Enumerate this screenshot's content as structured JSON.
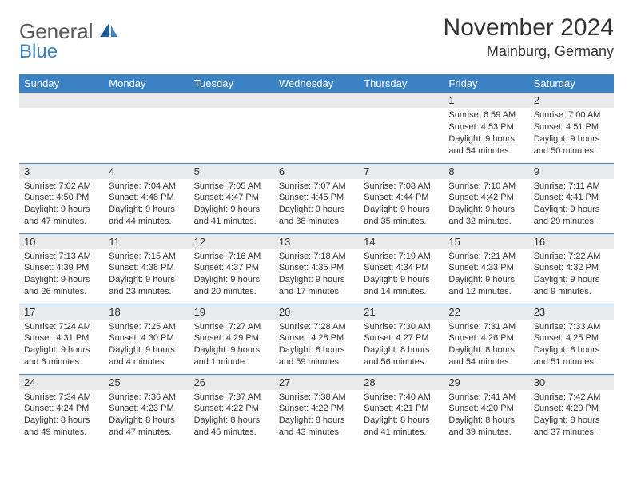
{
  "brand": {
    "main": "General",
    "sub": "Blue"
  },
  "title": {
    "month": "November 2024",
    "location": "Mainburg, Germany"
  },
  "colors": {
    "header_bg": "#3b82c4",
    "header_text": "#ffffff",
    "daynum_bg": "#e8eaec",
    "border": "#3b82c4",
    "text": "#333333",
    "logo_gray": "#5a5a5a",
    "logo_blue": "#3b82c4",
    "page_bg": "#ffffff"
  },
  "weekdays": [
    "Sunday",
    "Monday",
    "Tuesday",
    "Wednesday",
    "Thursday",
    "Friday",
    "Saturday"
  ],
  "weeks": [
    [
      {
        "num": "",
        "sunrise": "",
        "sunset": "",
        "daylight": ""
      },
      {
        "num": "",
        "sunrise": "",
        "sunset": "",
        "daylight": ""
      },
      {
        "num": "",
        "sunrise": "",
        "sunset": "",
        "daylight": ""
      },
      {
        "num": "",
        "sunrise": "",
        "sunset": "",
        "daylight": ""
      },
      {
        "num": "",
        "sunrise": "",
        "sunset": "",
        "daylight": ""
      },
      {
        "num": "1",
        "sunrise": "Sunrise: 6:59 AM",
        "sunset": "Sunset: 4:53 PM",
        "daylight": "Daylight: 9 hours and 54 minutes."
      },
      {
        "num": "2",
        "sunrise": "Sunrise: 7:00 AM",
        "sunset": "Sunset: 4:51 PM",
        "daylight": "Daylight: 9 hours and 50 minutes."
      }
    ],
    [
      {
        "num": "3",
        "sunrise": "Sunrise: 7:02 AM",
        "sunset": "Sunset: 4:50 PM",
        "daylight": "Daylight: 9 hours and 47 minutes."
      },
      {
        "num": "4",
        "sunrise": "Sunrise: 7:04 AM",
        "sunset": "Sunset: 4:48 PM",
        "daylight": "Daylight: 9 hours and 44 minutes."
      },
      {
        "num": "5",
        "sunrise": "Sunrise: 7:05 AM",
        "sunset": "Sunset: 4:47 PM",
        "daylight": "Daylight: 9 hours and 41 minutes."
      },
      {
        "num": "6",
        "sunrise": "Sunrise: 7:07 AM",
        "sunset": "Sunset: 4:45 PM",
        "daylight": "Daylight: 9 hours and 38 minutes."
      },
      {
        "num": "7",
        "sunrise": "Sunrise: 7:08 AM",
        "sunset": "Sunset: 4:44 PM",
        "daylight": "Daylight: 9 hours and 35 minutes."
      },
      {
        "num": "8",
        "sunrise": "Sunrise: 7:10 AM",
        "sunset": "Sunset: 4:42 PM",
        "daylight": "Daylight: 9 hours and 32 minutes."
      },
      {
        "num": "9",
        "sunrise": "Sunrise: 7:11 AM",
        "sunset": "Sunset: 4:41 PM",
        "daylight": "Daylight: 9 hours and 29 minutes."
      }
    ],
    [
      {
        "num": "10",
        "sunrise": "Sunrise: 7:13 AM",
        "sunset": "Sunset: 4:39 PM",
        "daylight": "Daylight: 9 hours and 26 minutes."
      },
      {
        "num": "11",
        "sunrise": "Sunrise: 7:15 AM",
        "sunset": "Sunset: 4:38 PM",
        "daylight": "Daylight: 9 hours and 23 minutes."
      },
      {
        "num": "12",
        "sunrise": "Sunrise: 7:16 AM",
        "sunset": "Sunset: 4:37 PM",
        "daylight": "Daylight: 9 hours and 20 minutes."
      },
      {
        "num": "13",
        "sunrise": "Sunrise: 7:18 AM",
        "sunset": "Sunset: 4:35 PM",
        "daylight": "Daylight: 9 hours and 17 minutes."
      },
      {
        "num": "14",
        "sunrise": "Sunrise: 7:19 AM",
        "sunset": "Sunset: 4:34 PM",
        "daylight": "Daylight: 9 hours and 14 minutes."
      },
      {
        "num": "15",
        "sunrise": "Sunrise: 7:21 AM",
        "sunset": "Sunset: 4:33 PM",
        "daylight": "Daylight: 9 hours and 12 minutes."
      },
      {
        "num": "16",
        "sunrise": "Sunrise: 7:22 AM",
        "sunset": "Sunset: 4:32 PM",
        "daylight": "Daylight: 9 hours and 9 minutes."
      }
    ],
    [
      {
        "num": "17",
        "sunrise": "Sunrise: 7:24 AM",
        "sunset": "Sunset: 4:31 PM",
        "daylight": "Daylight: 9 hours and 6 minutes."
      },
      {
        "num": "18",
        "sunrise": "Sunrise: 7:25 AM",
        "sunset": "Sunset: 4:30 PM",
        "daylight": "Daylight: 9 hours and 4 minutes."
      },
      {
        "num": "19",
        "sunrise": "Sunrise: 7:27 AM",
        "sunset": "Sunset: 4:29 PM",
        "daylight": "Daylight: 9 hours and 1 minute."
      },
      {
        "num": "20",
        "sunrise": "Sunrise: 7:28 AM",
        "sunset": "Sunset: 4:28 PM",
        "daylight": "Daylight: 8 hours and 59 minutes."
      },
      {
        "num": "21",
        "sunrise": "Sunrise: 7:30 AM",
        "sunset": "Sunset: 4:27 PM",
        "daylight": "Daylight: 8 hours and 56 minutes."
      },
      {
        "num": "22",
        "sunrise": "Sunrise: 7:31 AM",
        "sunset": "Sunset: 4:26 PM",
        "daylight": "Daylight: 8 hours and 54 minutes."
      },
      {
        "num": "23",
        "sunrise": "Sunrise: 7:33 AM",
        "sunset": "Sunset: 4:25 PM",
        "daylight": "Daylight: 8 hours and 51 minutes."
      }
    ],
    [
      {
        "num": "24",
        "sunrise": "Sunrise: 7:34 AM",
        "sunset": "Sunset: 4:24 PM",
        "daylight": "Daylight: 8 hours and 49 minutes."
      },
      {
        "num": "25",
        "sunrise": "Sunrise: 7:36 AM",
        "sunset": "Sunset: 4:23 PM",
        "daylight": "Daylight: 8 hours and 47 minutes."
      },
      {
        "num": "26",
        "sunrise": "Sunrise: 7:37 AM",
        "sunset": "Sunset: 4:22 PM",
        "daylight": "Daylight: 8 hours and 45 minutes."
      },
      {
        "num": "27",
        "sunrise": "Sunrise: 7:38 AM",
        "sunset": "Sunset: 4:22 PM",
        "daylight": "Daylight: 8 hours and 43 minutes."
      },
      {
        "num": "28",
        "sunrise": "Sunrise: 7:40 AM",
        "sunset": "Sunset: 4:21 PM",
        "daylight": "Daylight: 8 hours and 41 minutes."
      },
      {
        "num": "29",
        "sunrise": "Sunrise: 7:41 AM",
        "sunset": "Sunset: 4:20 PM",
        "daylight": "Daylight: 8 hours and 39 minutes."
      },
      {
        "num": "30",
        "sunrise": "Sunrise: 7:42 AM",
        "sunset": "Sunset: 4:20 PM",
        "daylight": "Daylight: 8 hours and 37 minutes."
      }
    ]
  ]
}
